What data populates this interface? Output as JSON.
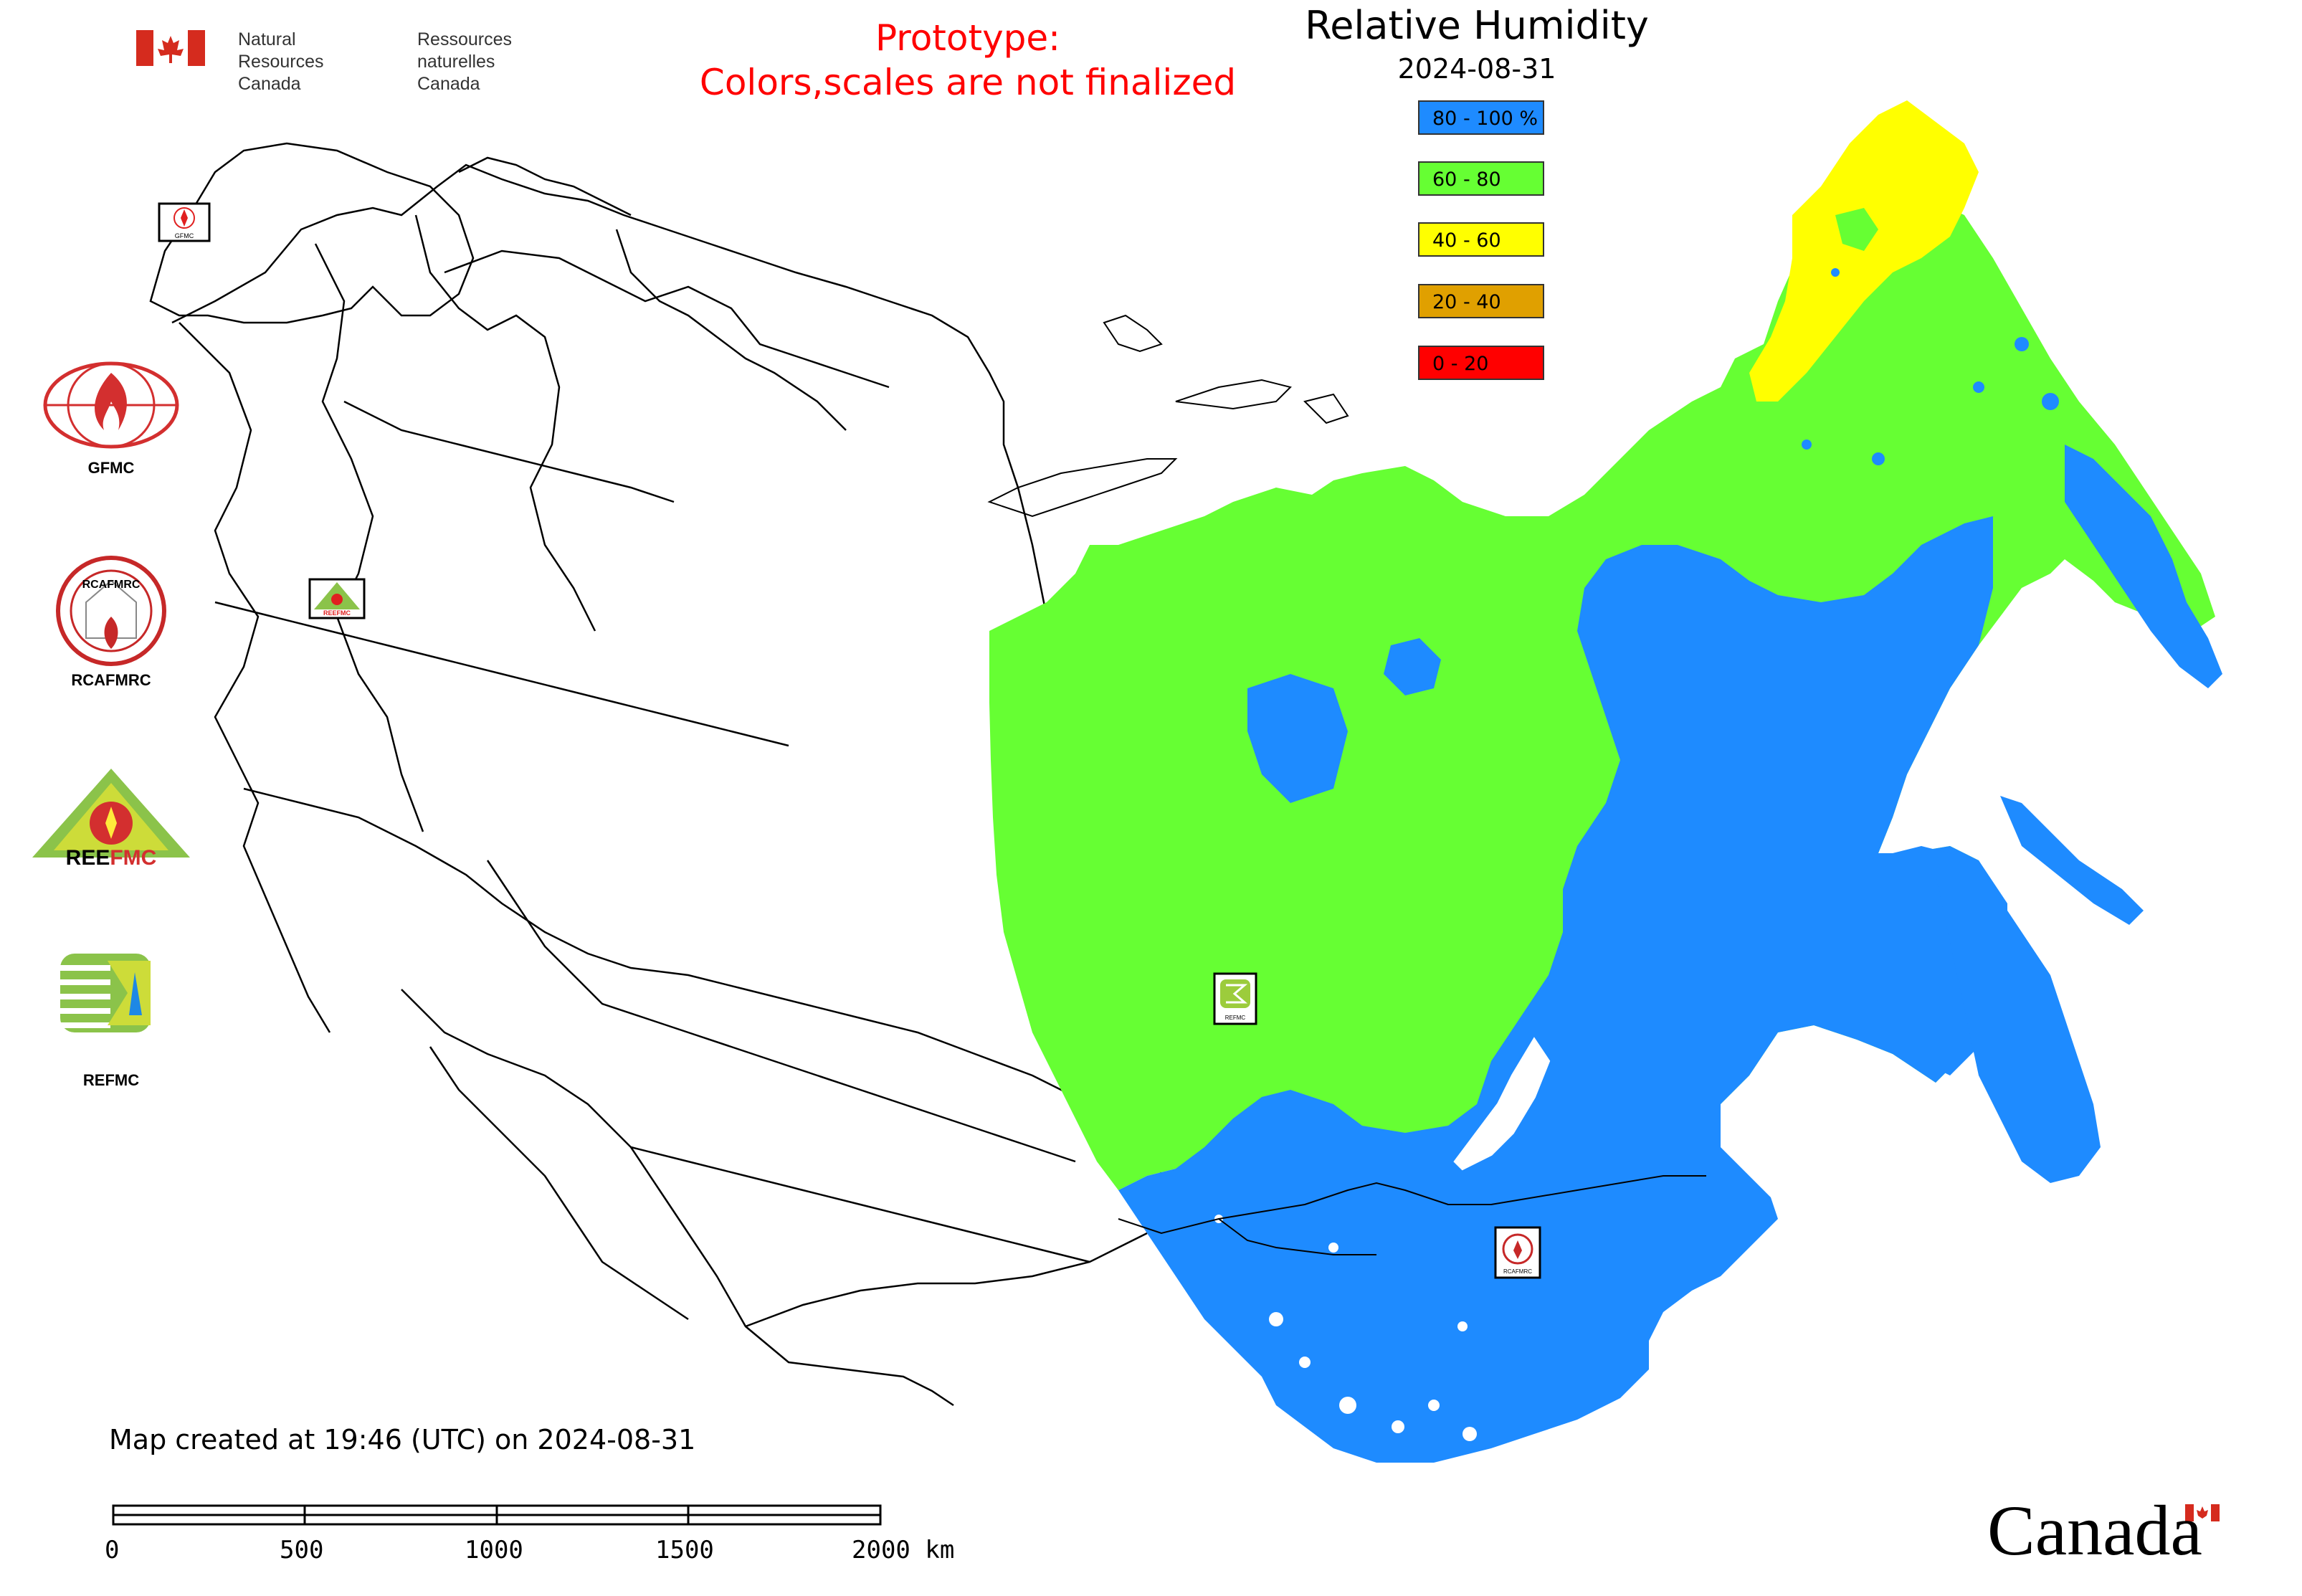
{
  "header": {
    "gov_en": "Natural Resources\nCanada",
    "gov_fr": "Ressources naturelles\nCanada",
    "prototype_line1": "Prototype:",
    "prototype_line2": "Colors,scales are not finalized"
  },
  "map": {
    "title": "Relative Humidity",
    "date": "2024-08-31",
    "legend": [
      {
        "label": "80 - 100 %",
        "color": "#1e8bff"
      },
      {
        "label": "60 - 80",
        "color": "#66ff33"
      },
      {
        "label": "40 - 60",
        "color": "#ffff00"
      },
      {
        "label": "20 - 40",
        "color": "#e0a000"
      },
      {
        "label": "0 - 20",
        "color": "#ff0000"
      }
    ],
    "map_centers": [
      {
        "name": "GFMC",
        "icon": "gfmc-flame-globe-icon"
      },
      {
        "name": "RCAFMRC",
        "icon": "rcafmrc-seal-icon"
      },
      {
        "name": "REEFMC",
        "icon": "reefmc-triangle-icon"
      },
      {
        "name": "REFMC",
        "icon": "refmc-sigma-icon"
      }
    ],
    "created_note": "Map created at 19:46 (UTC) on 2024-08-31",
    "scale_bar": {
      "labels": [
        "0",
        "500",
        "1000",
        "1500",
        "2000 km"
      ]
    }
  },
  "footer": {
    "canada_wordmark": "Canada"
  }
}
